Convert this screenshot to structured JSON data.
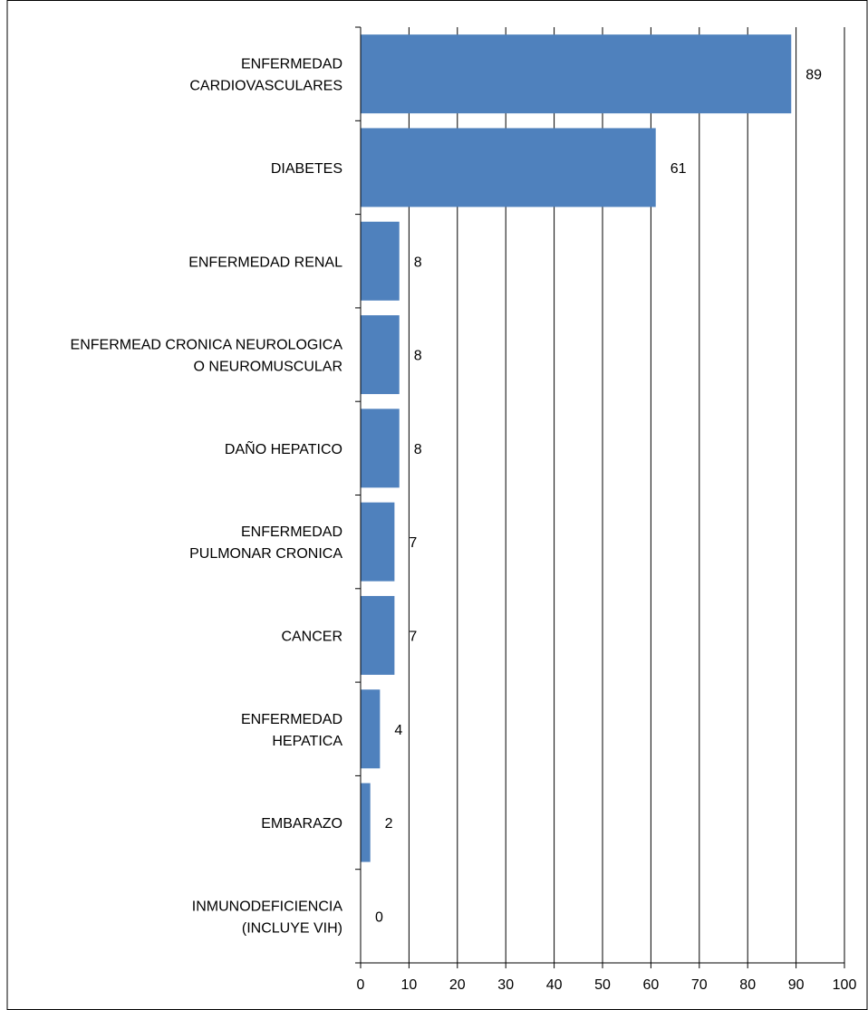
{
  "chart_data": {
    "type": "bar",
    "orientation": "horizontal",
    "categories": [
      [
        "ENFERMEDAD",
        "CARDIOVASCULARES"
      ],
      [
        "DIABETES"
      ],
      [
        "ENFERMEDAD RENAL"
      ],
      [
        "ENFERMEAD CRONICA NEUROLOGICA",
        "O NEUROMUSCULAR"
      ],
      [
        "DAÑO HEPATICO"
      ],
      [
        "ENFERMEDAD",
        "PULMONAR CRONICA"
      ],
      [
        "CANCER"
      ],
      [
        "ENFERMEDAD",
        "HEPATICA"
      ],
      [
        "EMBARAZO"
      ],
      [
        "INMUNODEFICIENCIA",
        "(INCLUYE VIH)"
      ]
    ],
    "values": [
      89,
      61,
      8,
      8,
      8,
      7,
      7,
      4,
      2,
      0
    ],
    "title": "",
    "xlabel": "",
    "ylabel": "",
    "xlim": [
      0,
      100
    ],
    "x_ticks": [
      0,
      10,
      20,
      30,
      40,
      50,
      60,
      70,
      80,
      90,
      100
    ],
    "data_labels": true,
    "grid": "vertical",
    "legend": "none",
    "bar_color": "#4f81bd",
    "grid_color": "#000000"
  }
}
